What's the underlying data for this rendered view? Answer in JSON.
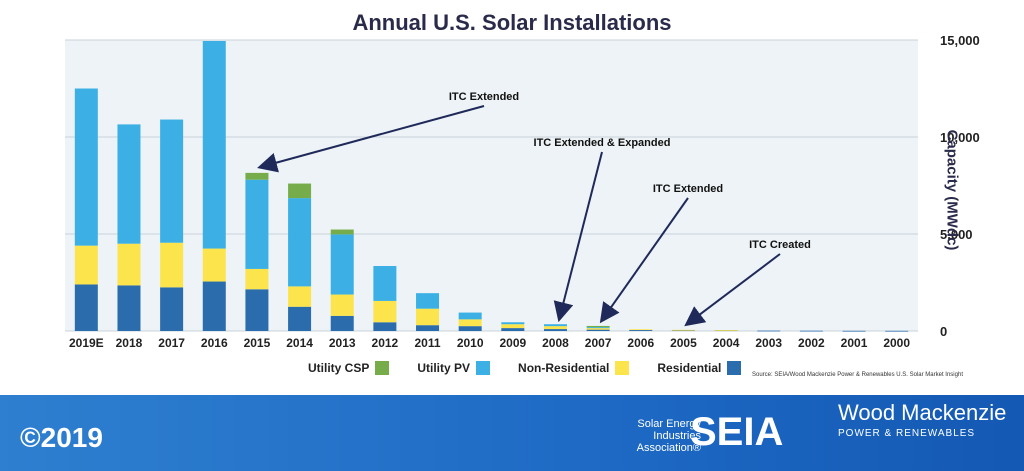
{
  "title": "Annual U.S. Solar Installations",
  "ylabel": "Capacity (MWdc)",
  "source": "Source: SEIA/Wood Mackenzie Power & Renewables U.S. Solar Market Insight",
  "copyright": "©2019",
  "logos": {
    "seia_text": "Solar Energy Industries Association®",
    "seia_mark": "SEIA",
    "wm_name": "Wood Mackenzie",
    "wm_sub": "POWER & RENEWABLES"
  },
  "colors": {
    "residential": "#2b6cad",
    "non_residential": "#fbe44c",
    "utility_pv": "#3cb0e5",
    "utility_csp": "#76ad4a",
    "plot_bg": "#edf3f6",
    "arrow": "#1f2a5a"
  },
  "chart_data": {
    "type": "bar",
    "stacked": true,
    "categories": [
      "2000",
      "2001",
      "2002",
      "2003",
      "2004",
      "2005",
      "2006",
      "2007",
      "2008",
      "2009",
      "2010",
      "2011",
      "2012",
      "2013",
      "2014",
      "2015",
      "2016",
      "2017",
      "2018",
      "2019E"
    ],
    "series": [
      {
        "name": "Residential",
        "color": "#2b6cad",
        "values": [
          10,
          11,
          15,
          20,
          40,
          40,
          50,
          70,
          100,
          150,
          250,
          300,
          450,
          780,
          1250,
          2150,
          2550,
          2250,
          2350,
          2400
        ]
      },
      {
        "name": "Non-Residential",
        "color": "#fbe44c",
        "values": [
          0,
          0,
          0,
          0,
          10,
          20,
          40,
          80,
          150,
          200,
          350,
          850,
          1100,
          1100,
          1050,
          1050,
          1700,
          2300,
          2150,
          2000
        ]
      },
      {
        "name": "Utility PV",
        "color": "#3cb0e5",
        "values": [
          0,
          0,
          0,
          0,
          0,
          0,
          0,
          50,
          100,
          100,
          350,
          800,
          1800,
          3100,
          4550,
          4600,
          10700,
          6350,
          6150,
          8100
        ]
      },
      {
        "name": "Utility CSP",
        "color": "#76ad4a",
        "values": [
          0,
          0,
          0,
          0,
          0,
          0,
          0,
          60,
          0,
          0,
          0,
          0,
          0,
          250,
          750,
          350,
          0,
          0,
          0,
          0
        ]
      }
    ],
    "ylim": [
      0,
      15000
    ],
    "yticks": [
      0,
      5000,
      10000,
      15000
    ],
    "ytick_labels": [
      "0",
      "5,000",
      "10,000",
      "15,000"
    ],
    "grid": true,
    "legend_position": "bottom",
    "annotations": [
      {
        "text": "ITC Created",
        "target": "2005"
      },
      {
        "text": "ITC Extended",
        "target": "2007"
      },
      {
        "text": "ITC Extended & Expanded",
        "target": "2008"
      },
      {
        "text": "ITC Extended",
        "target": "2015"
      }
    ]
  }
}
